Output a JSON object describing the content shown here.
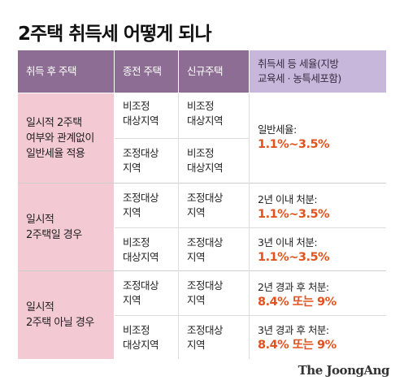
{
  "title": "2주택 취득세 어떻게 되나",
  "headers": {
    "acquisition": "취득 후 주택",
    "previous": "종전 주택",
    "new": "신규주택",
    "rate_line1": "취득세 등 세율(지방",
    "rate_line2": "교육세 · 농특세포함)"
  },
  "groups": [
    {
      "label_lines": [
        "일시적 2주택",
        "여부와 관계없이",
        "일반세율 적용"
      ],
      "sub_rows": [
        {
          "previous": [
            "비조정",
            "대상지역"
          ],
          "new": [
            "비조정",
            "대상지역"
          ]
        },
        {
          "previous": [
            "조정대상",
            "지역"
          ],
          "new": [
            "비조정",
            "대상지역"
          ]
        }
      ],
      "rates": [
        {
          "label": "일반세율:",
          "value": "1.1%~3.5%"
        }
      ]
    },
    {
      "label_lines": [
        "일시적",
        "2주택일 경우"
      ],
      "sub_rows": [
        {
          "previous": [
            "조정대상",
            "지역"
          ],
          "new": [
            "조정대상",
            "지역"
          ]
        },
        {
          "previous": [
            "비조정",
            "대상지역"
          ],
          "new": [
            "조정대상",
            "지역"
          ]
        }
      ],
      "rates": [
        {
          "label": "2년 이내 처분:",
          "value": "1.1%~3.5%"
        },
        {
          "label": "3년 이내 처분:",
          "value": "1.1%~3.5%"
        }
      ]
    },
    {
      "label_lines": [
        "일시적",
        "2주택 아닐 경우"
      ],
      "sub_rows": [
        {
          "previous": [
            "조정대상",
            "지역"
          ],
          "new": [
            "조정대상",
            "지역"
          ]
        },
        {
          "previous": [
            "비조정",
            "대상지역"
          ],
          "new": [
            "조정대상",
            "지역"
          ]
        }
      ],
      "rates": [
        {
          "label": "2년 경과 후 처분:",
          "value": "8.4% 또는 9%"
        },
        {
          "label": "3년 경과 후 처분:",
          "value": "8.4% 또는 9%"
        }
      ]
    }
  ],
  "source": "The JoongAng",
  "colors": {
    "header": "#8d6d93",
    "header_rate": "#c7b7da",
    "acquisition_cell": "#f3cad3",
    "rate_value": "#e0531f"
  }
}
